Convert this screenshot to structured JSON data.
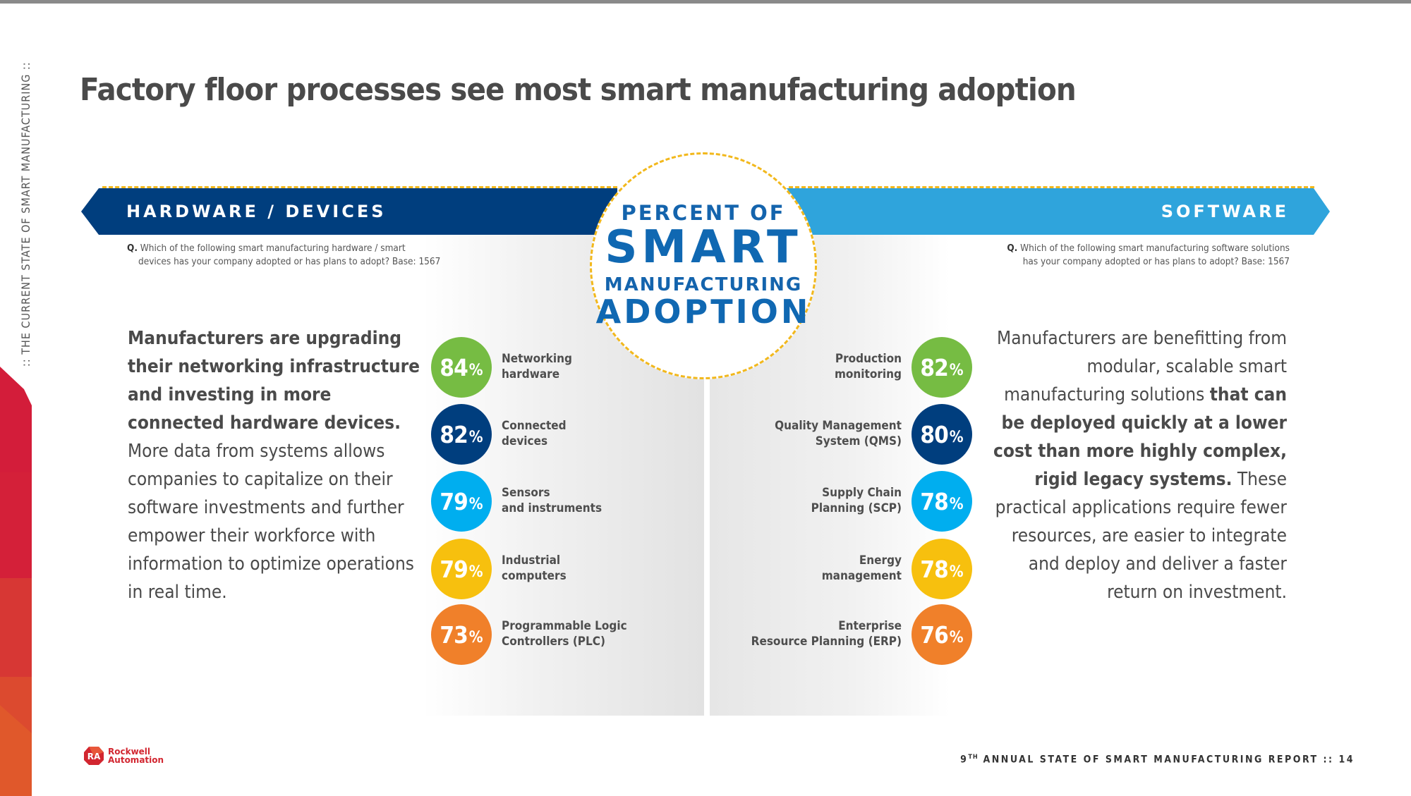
{
  "side_label": ":: THE CURRENT STATE OF SMART MANUFACTURING ::",
  "title": {
    "regular": "Factory floor processes see most ",
    "bold": "smart manufacturing adoption"
  },
  "center": {
    "line1": "PERCENT OF",
    "line2": "SMART",
    "line3": "MANUFACTURING",
    "line4": "ADOPTION"
  },
  "hardware": {
    "banner": "HARDWARE / DEVICES",
    "color": "#003e7e",
    "question_prefix": "Q.",
    "question_line1": "Which of the following smart manufacturing hardware / smart",
    "question_line2": "devices has your company adopted or has plans to adopt? Base: 1567",
    "paragraph_bold": "Manufacturers are upgrading their networking infrastructure and investing in more connected hardware devices.",
    "paragraph_regular": " More data from systems allows companies to capitalize on their software investments and further empower their workforce with information to optimize operations in real time.",
    "items": [
      {
        "value": "84",
        "unit": "%",
        "label_line1": "Networking",
        "label_line2": "hardware",
        "color": "#76bc43"
      },
      {
        "value": "82",
        "unit": "%",
        "label_line1": "Connected",
        "label_line2": "devices",
        "color": "#003e7e"
      },
      {
        "value": "79",
        "unit": "%",
        "label_line1": "Sensors",
        "label_line2": "and instruments",
        "color": "#00aeef"
      },
      {
        "value": "79",
        "unit": "%",
        "label_line1": "Industrial",
        "label_line2": "computers",
        "color": "#f7c00e"
      },
      {
        "value": "73",
        "unit": "%",
        "label_line1": "Programmable Logic",
        "label_line2": "Controllers (PLC)",
        "color": "#f0802a"
      }
    ]
  },
  "software": {
    "banner": "SOFTWARE",
    "color": "#2fa4dc",
    "question_prefix": "Q.",
    "question_line1": "Which of the following smart manufacturing software solutions",
    "question_line2": "has your company adopted or has plans to adopt? Base: 1567",
    "paragraph_regular_1": "Manufacturers are benefitting from modular, scalable smart manufacturing solutions ",
    "paragraph_bold": "that can be deployed quickly at a lower cost than more highly complex, rigid legacy systems.",
    "paragraph_regular_2": " These practical applications require fewer resources, are easier to integrate and deploy and deliver a faster return on investment.",
    "items": [
      {
        "value": "82",
        "unit": "%",
        "label_line1": "Production",
        "label_line2": "monitoring",
        "color": "#76bc43"
      },
      {
        "value": "80",
        "unit": "%",
        "label_line1": "Quality Management",
        "label_line2": "System (QMS)",
        "color": "#003e7e"
      },
      {
        "value": "78",
        "unit": "%",
        "label_line1": "Supply Chain",
        "label_line2": "Planning (SCP)",
        "color": "#00aeef"
      },
      {
        "value": "78",
        "unit": "%",
        "label_line1": "Energy",
        "label_line2": "management",
        "color": "#f7c00e"
      },
      {
        "value": "76",
        "unit": "%",
        "label_line1": "Enterprise",
        "label_line2": "Resource Planning (ERP)",
        "color": "#f0802a"
      }
    ]
  },
  "footer": {
    "logo_mark": "RA",
    "logo_line1": "Rockwell",
    "logo_line2": "Automation",
    "report_num": "9",
    "report_sup": "TH",
    "report_text": " ANNUAL STATE OF SMART MANUFACTURING REPORT  :: 14"
  }
}
